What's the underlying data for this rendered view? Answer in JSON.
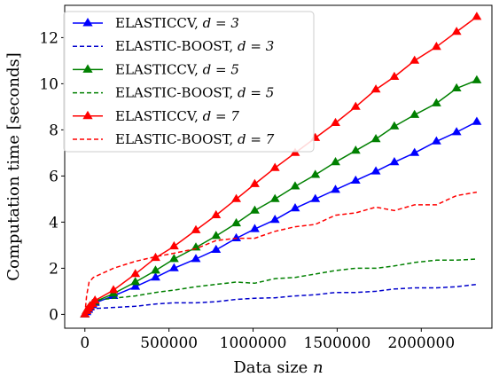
{
  "chart_data": {
    "type": "line",
    "title": "",
    "xlabel_parts": [
      "Data size ",
      "n"
    ],
    "ylabel": "Computation time [seconds]",
    "xlim": [
      -120000,
      2420000
    ],
    "ylim": [
      -0.6,
      13.4
    ],
    "x_ticks": [
      0,
      500000,
      1000000,
      1500000,
      2000000
    ],
    "x_tick_labels": [
      "0",
      "500000",
      "1000000",
      "1500000",
      "2000000"
    ],
    "y_ticks": [
      0,
      2,
      4,
      6,
      8,
      10,
      12
    ],
    "y_tick_labels": [
      "0",
      "2",
      "4",
      "6",
      "8",
      "10",
      "12"
    ],
    "grid": false,
    "legend_position": "top-left",
    "series": [
      {
        "name": "ELASTICCV, d = 3",
        "legend_label": "ELASTICCV,",
        "legend_d": "d = 3",
        "color": "#0000ff",
        "style": "solid",
        "marker": "triangle",
        "x": [
          0,
          10000,
          20000,
          30000,
          45000,
          60000,
          170000,
          300000,
          420000,
          530000,
          660000,
          780000,
          900000,
          1010000,
          1130000,
          1250000,
          1370000,
          1490000,
          1610000,
          1730000,
          1840000,
          1960000,
          2090000,
          2210000,
          2330000
        ],
        "y": [
          0.0,
          0.1,
          0.2,
          0.3,
          0.4,
          0.5,
          0.8,
          1.2,
          1.6,
          2.0,
          2.4,
          2.8,
          3.3,
          3.7,
          4.1,
          4.6,
          5.0,
          5.4,
          5.8,
          6.2,
          6.6,
          7.0,
          7.5,
          7.9,
          8.35
        ]
      },
      {
        "name": "ELASTIC-BOOST, d = 3",
        "legend_label": "ELASTIC-BOOST,",
        "legend_d": "d = 3",
        "color": "#0000cc",
        "style": "dashed",
        "marker": "none",
        "x": [
          0,
          20000,
          50000,
          170000,
          300000,
          420000,
          530000,
          660000,
          780000,
          900000,
          1010000,
          1130000,
          1250000,
          1370000,
          1490000,
          1610000,
          1730000,
          1840000,
          1960000,
          2090000,
          2210000,
          2330000
        ],
        "y": [
          0.0,
          0.2,
          0.25,
          0.3,
          0.35,
          0.45,
          0.5,
          0.5,
          0.55,
          0.65,
          0.7,
          0.72,
          0.8,
          0.85,
          0.95,
          0.95,
          1.0,
          1.1,
          1.15,
          1.15,
          1.2,
          1.3
        ]
      },
      {
        "name": "ELASTICCV, d = 5",
        "legend_label": "ELASTICCV,",
        "legend_d": "d = 5",
        "color": "#008000",
        "style": "solid",
        "marker": "triangle",
        "x": [
          0,
          10000,
          20000,
          30000,
          45000,
          60000,
          170000,
          300000,
          420000,
          530000,
          660000,
          780000,
          900000,
          1010000,
          1130000,
          1250000,
          1370000,
          1490000,
          1610000,
          1730000,
          1840000,
          1960000,
          2090000,
          2210000,
          2330000
        ],
        "y": [
          0.0,
          0.15,
          0.25,
          0.35,
          0.45,
          0.55,
          0.9,
          1.4,
          1.9,
          2.4,
          2.9,
          3.4,
          3.95,
          4.5,
          5.0,
          5.55,
          6.05,
          6.6,
          7.1,
          7.6,
          8.15,
          8.65,
          9.15,
          9.8,
          10.15
        ]
      },
      {
        "name": "ELASTIC-BOOST, d = 5",
        "legend_label": "ELASTIC-BOOST,",
        "legend_d": "d = 5",
        "color": "#008000",
        "style": "dashed",
        "marker": "none",
        "x": [
          0,
          20000,
          50000,
          170000,
          300000,
          420000,
          530000,
          660000,
          780000,
          900000,
          1010000,
          1130000,
          1250000,
          1370000,
          1490000,
          1610000,
          1730000,
          1840000,
          1960000,
          2090000,
          2210000,
          2330000
        ],
        "y": [
          0.0,
          0.4,
          0.6,
          0.7,
          0.8,
          0.95,
          1.05,
          1.2,
          1.3,
          1.4,
          1.35,
          1.55,
          1.6,
          1.75,
          1.9,
          2.0,
          2.0,
          2.1,
          2.25,
          2.35,
          2.35,
          2.4
        ]
      },
      {
        "name": "ELASTICCV, d = 7",
        "legend_label": "ELASTICCV,",
        "legend_d": "d = 7",
        "color": "#ff0000",
        "style": "solid",
        "marker": "triangle",
        "x": [
          0,
          10000,
          20000,
          30000,
          45000,
          60000,
          170000,
          300000,
          420000,
          530000,
          660000,
          780000,
          900000,
          1010000,
          1130000,
          1250000,
          1370000,
          1490000,
          1610000,
          1730000,
          1840000,
          1960000,
          2090000,
          2210000,
          2330000
        ],
        "y": [
          0.0,
          0.15,
          0.25,
          0.35,
          0.45,
          0.6,
          1.05,
          1.75,
          2.45,
          2.95,
          3.65,
          4.3,
          5.0,
          5.65,
          6.35,
          7.0,
          7.65,
          8.3,
          9.0,
          9.75,
          10.3,
          11.0,
          11.6,
          12.25,
          12.9
        ]
      },
      {
        "name": "ELASTIC-BOOST, d = 7",
        "legend_label": "ELASTIC-BOOST,",
        "legend_d": "d = 7",
        "color": "#ff0000",
        "style": "dashed",
        "marker": "none",
        "x": [
          0,
          10000,
          25000,
          50000,
          170000,
          300000,
          420000,
          530000,
          660000,
          780000,
          900000,
          1010000,
          1130000,
          1250000,
          1370000,
          1490000,
          1610000,
          1730000,
          1840000,
          1960000,
          2090000,
          2210000,
          2330000
        ],
        "y": [
          0.0,
          0.8,
          1.4,
          1.6,
          2.0,
          2.3,
          2.5,
          2.65,
          2.85,
          3.2,
          3.3,
          3.3,
          3.6,
          3.8,
          3.9,
          4.3,
          4.4,
          4.65,
          4.5,
          4.75,
          4.75,
          5.15,
          5.3
        ]
      }
    ]
  }
}
